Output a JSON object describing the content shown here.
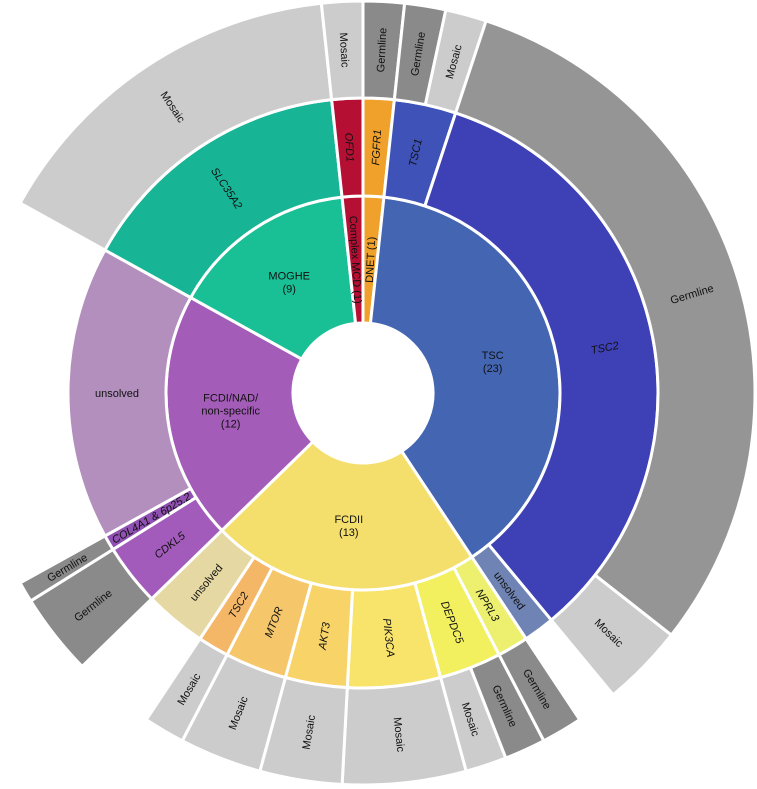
{
  "chart_data": {
    "type": "sunburst",
    "rings": [
      {
        "level": "diagnosis",
        "segments": [
          {
            "label": "DNET (1)",
            "value": 1,
            "color": "#f0a12b"
          },
          {
            "label": "TSC\n(23)",
            "value": 23,
            "color": "#4466b2"
          },
          {
            "label": "FCDII\n(13)",
            "value": 13,
            "color": "#f5df6c"
          },
          {
            "label": "FCDI/NAD/\nnon-specific\n(12)",
            "value": 12,
            "color": "#a45cb9"
          },
          {
            "label": "MOGHE\n(9)",
            "value": 9,
            "color": "#19bf95"
          },
          {
            "label": "Complex MCD (1)",
            "value": 1,
            "color": "#b51034"
          }
        ]
      },
      {
        "level": "gene",
        "segments": [
          {
            "label": "FGFR1",
            "value": 1,
            "color": "#f0a12b",
            "italic": true
          },
          {
            "label": "TSC1",
            "value": 2,
            "color": "#3e52b8",
            "italic": true
          },
          {
            "label": "TSC2",
            "value": 20,
            "color": "#3e40b6",
            "italic": true
          },
          {
            "label": "unsolved",
            "value": 1,
            "color": "#6f84b4"
          },
          {
            "label": "NPRL3",
            "value": 1,
            "color": "#ecf06e",
            "italic": true
          },
          {
            "label": "DEPDC5",
            "value": 2,
            "color": "#f2f05e",
            "italic": true
          },
          {
            "label": "PIK3CA",
            "value": 3,
            "color": "#f9e46b",
            "italic": true
          },
          {
            "label": "AKT3",
            "value": 2,
            "color": "#f8d468",
            "italic": true
          },
          {
            "label": "MTOR",
            "value": 2,
            "color": "#f6c76a",
            "italic": true
          },
          {
            "label": "TSC2",
            "value": 1,
            "color": "#f3b767",
            "italic": true
          },
          {
            "label": "unsolved",
            "value": 2,
            "color": "#e6d8a2"
          },
          {
            "label": "CDKL5",
            "value": 2,
            "color": "#a35bbb",
            "italic": true
          },
          {
            "label": "COL4A1 & 6p25.2",
            "value": 0.5,
            "color": "#9051b2",
            "italic": true
          },
          {
            "label": "unsolved",
            "value": 9.5,
            "color": "#b38fbd"
          },
          {
            "label": "SLC35A2",
            "value": 9,
            "color": "#17b596",
            "italic": true
          },
          {
            "label": "OFD1",
            "value": 1,
            "color": "#b51034",
            "italic": true
          }
        ]
      },
      {
        "level": "variant",
        "segments": [
          {
            "label": "Germline",
            "value": 1,
            "color": "#8a8a8a",
            "show": true
          },
          {
            "label": "Germline",
            "value": 1,
            "color": "#8a8a8a",
            "show": true
          },
          {
            "label": "Mosaic",
            "value": 1,
            "color": "#cccccc",
            "show": true
          },
          {
            "label": "Germline",
            "value": 18,
            "color": "#959595",
            "show": true
          },
          {
            "label": "Mosaic",
            "value": 2,
            "color": "#cccccc",
            "show": true
          },
          {
            "label": "",
            "value": 1,
            "color": "none",
            "show": false
          },
          {
            "label": "Germline",
            "value": 1,
            "color": "#8a8a8a",
            "show": true
          },
          {
            "label": "Germline",
            "value": 1,
            "color": "#8a8a8a",
            "show": true
          },
          {
            "label": "Mosaic",
            "value": 1,
            "color": "#cccccc",
            "show": true
          },
          {
            "label": "Mosaic",
            "value": 3,
            "color": "#cccccc",
            "show": true
          },
          {
            "label": "Mosaic",
            "value": 2,
            "color": "#cccccc",
            "show": true
          },
          {
            "label": "Mosaic",
            "value": 2,
            "color": "#cccccc",
            "show": true
          },
          {
            "label": "Mosaic",
            "value": 1,
            "color": "#cccccc",
            "show": true
          },
          {
            "label": "",
            "value": 2,
            "color": "none",
            "show": false
          },
          {
            "label": "Germline",
            "value": 2,
            "color": "#8a8a8a",
            "show": true
          },
          {
            "label": "Germline",
            "value": 0.5,
            "color": "#8a8a8a",
            "show": true
          },
          {
            "label": "",
            "value": 9.5,
            "color": "none",
            "show": false
          },
          {
            "label": "Mosaic",
            "value": 9,
            "color": "#cccccc",
            "show": true
          },
          {
            "label": "Mosaic",
            "value": 1,
            "color": "#cccccc",
            "show": true
          }
        ]
      }
    ]
  }
}
